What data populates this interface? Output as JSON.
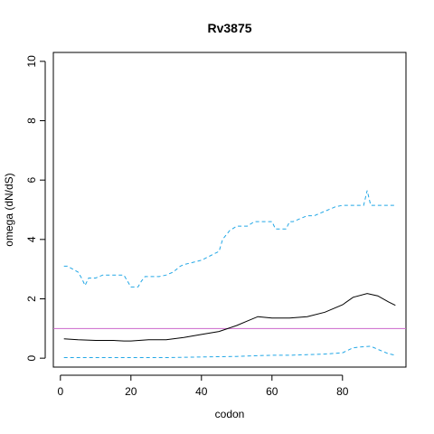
{
  "chart_data": {
    "type": "line",
    "title": "Rv3875",
    "xlabel": "codon",
    "ylabel": "omega (dN/dS)",
    "xlim": [
      -2,
      98
    ],
    "ylim": [
      -0.3,
      10.3
    ],
    "x_ticks": [
      0,
      20,
      40,
      60,
      80
    ],
    "y_ticks": [
      0,
      2,
      4,
      6,
      8,
      10
    ],
    "grid": false,
    "reference_line": {
      "y": 1,
      "color": "#cc66cc"
    },
    "series": [
      {
        "style": "solid",
        "color": "#000000",
        "x": [
          1,
          5,
          10,
          15,
          18,
          20,
          25,
          30,
          35,
          40,
          45,
          50,
          53,
          56,
          60,
          65,
          70,
          75,
          80,
          83,
          87,
          90,
          93,
          95
        ],
        "y": [
          0.65,
          0.62,
          0.6,
          0.6,
          0.58,
          0.58,
          0.62,
          0.62,
          0.7,
          0.8,
          0.9,
          1.1,
          1.25,
          1.4,
          1.35,
          1.35,
          1.4,
          1.55,
          1.8,
          2.05,
          2.18,
          2.1,
          1.9,
          1.78
        ]
      },
      {
        "style": "dashed",
        "color": "#22a7e6",
        "x": [
          1,
          2,
          5,
          6,
          7,
          8,
          10,
          11,
          12,
          18,
          19,
          20,
          22,
          23,
          24,
          28,
          30,
          32,
          34,
          35,
          40,
          45,
          46,
          48,
          50,
          53,
          55,
          57,
          60,
          61,
          62,
          64,
          65,
          66,
          68,
          70,
          72,
          75,
          77,
          78,
          80,
          85,
          86,
          87,
          88,
          90,
          95
        ],
        "y": [
          3.1,
          3.1,
          2.9,
          2.7,
          2.45,
          2.7,
          2.7,
          2.75,
          2.8,
          2.8,
          2.6,
          2.4,
          2.4,
          2.6,
          2.75,
          2.75,
          2.8,
          2.9,
          3.1,
          3.15,
          3.3,
          3.6,
          4.0,
          4.3,
          4.45,
          4.45,
          4.6,
          4.6,
          4.6,
          4.35,
          4.35,
          4.35,
          4.6,
          4.6,
          4.7,
          4.8,
          4.8,
          4.95,
          5.05,
          5.1,
          5.15,
          5.15,
          5.15,
          5.65,
          5.15,
          5.15,
          5.15
        ]
      },
      {
        "style": "dashed",
        "color": "#22a7e6",
        "x": [
          1,
          10,
          20,
          30,
          40,
          45,
          50,
          55,
          60,
          65,
          70,
          75,
          80,
          83,
          85,
          88,
          90,
          93,
          95
        ],
        "y": [
          0.02,
          0.02,
          0.02,
          0.02,
          0.04,
          0.05,
          0.06,
          0.08,
          0.1,
          0.1,
          0.12,
          0.14,
          0.18,
          0.35,
          0.38,
          0.4,
          0.3,
          0.15,
          0.1
        ]
      }
    ]
  }
}
